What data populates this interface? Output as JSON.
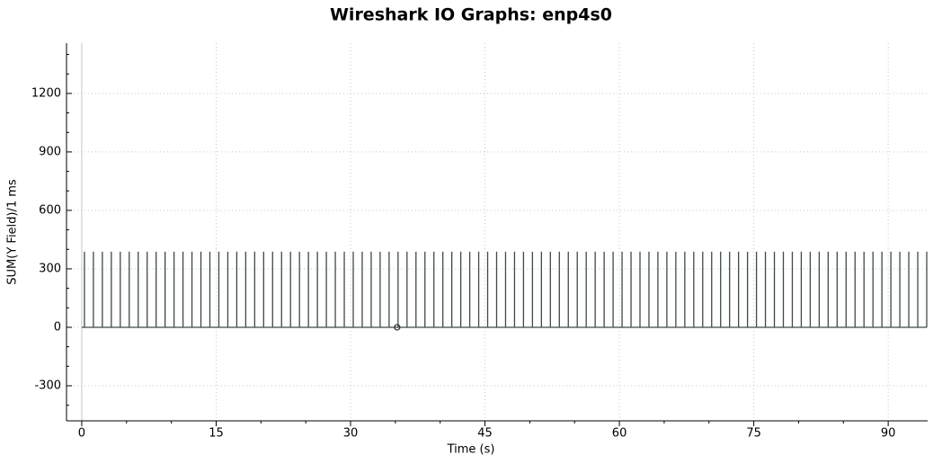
{
  "chart_data": {
    "type": "stem",
    "title": "Wireshark IO Graphs: enp4s0",
    "xlabel": "Time (s)",
    "ylabel": "SUM(Y Field)/1 ms",
    "xlim": [
      -1.7,
      94.4
    ],
    "ylim": [
      -480,
      1458
    ],
    "xticks": [
      0,
      15,
      30,
      45,
      60,
      75,
      90
    ],
    "xminorticks": [
      5,
      10,
      20,
      25,
      35,
      40,
      50,
      55,
      65,
      70,
      80,
      85
    ],
    "yticks": [
      -300,
      0,
      300,
      600,
      900,
      1200
    ],
    "yminorticks": [
      -400,
      -200,
      -100,
      100,
      200,
      400,
      500,
      700,
      800,
      1000,
      1100,
      1300,
      1400
    ],
    "grid": true,
    "series": [
      {
        "color": "#3f4a44",
        "x": [
          0.3,
          1.3,
          2.3,
          3.3,
          4.3,
          5.3,
          6.3,
          7.3,
          8.3,
          9.3,
          10.3,
          11.3,
          12.3,
          13.3,
          14.3,
          15.3,
          16.3,
          17.3,
          18.3,
          19.3,
          20.3,
          21.3,
          22.3,
          23.3,
          24.3,
          25.3,
          26.3,
          27.3,
          28.3,
          29.3,
          30.3,
          31.3,
          32.3,
          33.3,
          34.3,
          35.3,
          36.3,
          37.3,
          38.3,
          39.3,
          40.3,
          41.3,
          42.3,
          43.3,
          44.3,
          45.3,
          46.3,
          47.3,
          48.3,
          49.3,
          50.3,
          51.3,
          52.3,
          53.3,
          54.3,
          55.3,
          56.3,
          57.3,
          58.3,
          59.3,
          60.3,
          61.3,
          62.3,
          63.3,
          64.3,
          65.3,
          66.3,
          67.3,
          68.3,
          69.3,
          70.3,
          71.3,
          72.3,
          73.3,
          74.3,
          75.3,
          76.3,
          77.3,
          78.3,
          79.3,
          80.3,
          81.3,
          82.3,
          83.3,
          84.3,
          85.3,
          86.3,
          87.3,
          88.3,
          89.3,
          90.3,
          91.3,
          92.3,
          93.3,
          94.3
        ],
        "values": [
          388,
          388,
          388,
          388,
          388,
          388,
          388,
          388,
          388,
          388,
          388,
          388,
          388,
          388,
          388,
          388,
          388,
          388,
          388,
          388,
          388,
          388,
          388,
          388,
          388,
          388,
          388,
          388,
          388,
          388,
          388,
          388,
          388,
          388,
          388,
          388,
          388,
          388,
          388,
          388,
          388,
          388,
          388,
          388,
          388,
          388,
          388,
          388,
          388,
          388,
          388,
          388,
          388,
          388,
          388,
          388,
          388,
          388,
          388,
          388,
          388,
          388,
          388,
          388,
          388,
          388,
          388,
          388,
          388,
          388,
          388,
          388,
          388,
          388,
          388,
          388,
          388,
          388,
          388,
          388,
          388,
          388,
          388,
          388,
          388,
          388,
          388,
          388,
          388,
          388,
          388,
          388,
          388,
          388,
          388
        ]
      }
    ],
    "marker": {
      "x": 35.2,
      "y": 0
    }
  }
}
